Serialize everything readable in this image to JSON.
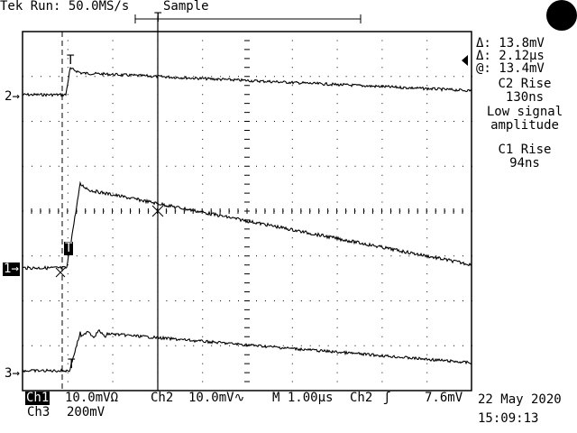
{
  "header": {
    "status": "Tek Run: 50.0MS/s",
    "mode": "Sample",
    "trigger_marker": "T"
  },
  "cursor_readout": {
    "delta_v": "Δ: 13.8mV",
    "delta_t": "Δ: 2.12μs",
    "at_v": "@: 13.4mV"
  },
  "annotations": {
    "c2_rise_label": "C2 Rise",
    "c2_rise_value": "130ns",
    "note_line1": "Low signal",
    "note_line2": "amplitude",
    "c1_rise_label": "C1 Rise",
    "c1_rise_value": "94ns"
  },
  "channel_markers": {
    "ch2": "2",
    "ch1": "1",
    "ch3": "3"
  },
  "trace_markers": {
    "t2": "T",
    "t1": "T",
    "t3": "T"
  },
  "footer": {
    "ch1_label": "Ch1",
    "ch1_scale": "10.0mVΩ",
    "ch2_label": "Ch2",
    "ch2_scale": "10.0mV∿",
    "timebase": "M 1.00μs",
    "trigger_source": "Ch2",
    "trigger_slope": "ʃ",
    "trigger_level": "7.6mV",
    "ch3_label": "Ch3",
    "ch3_scale": "200mV",
    "date": "22 May 2020",
    "time": "15:09:13"
  }
}
